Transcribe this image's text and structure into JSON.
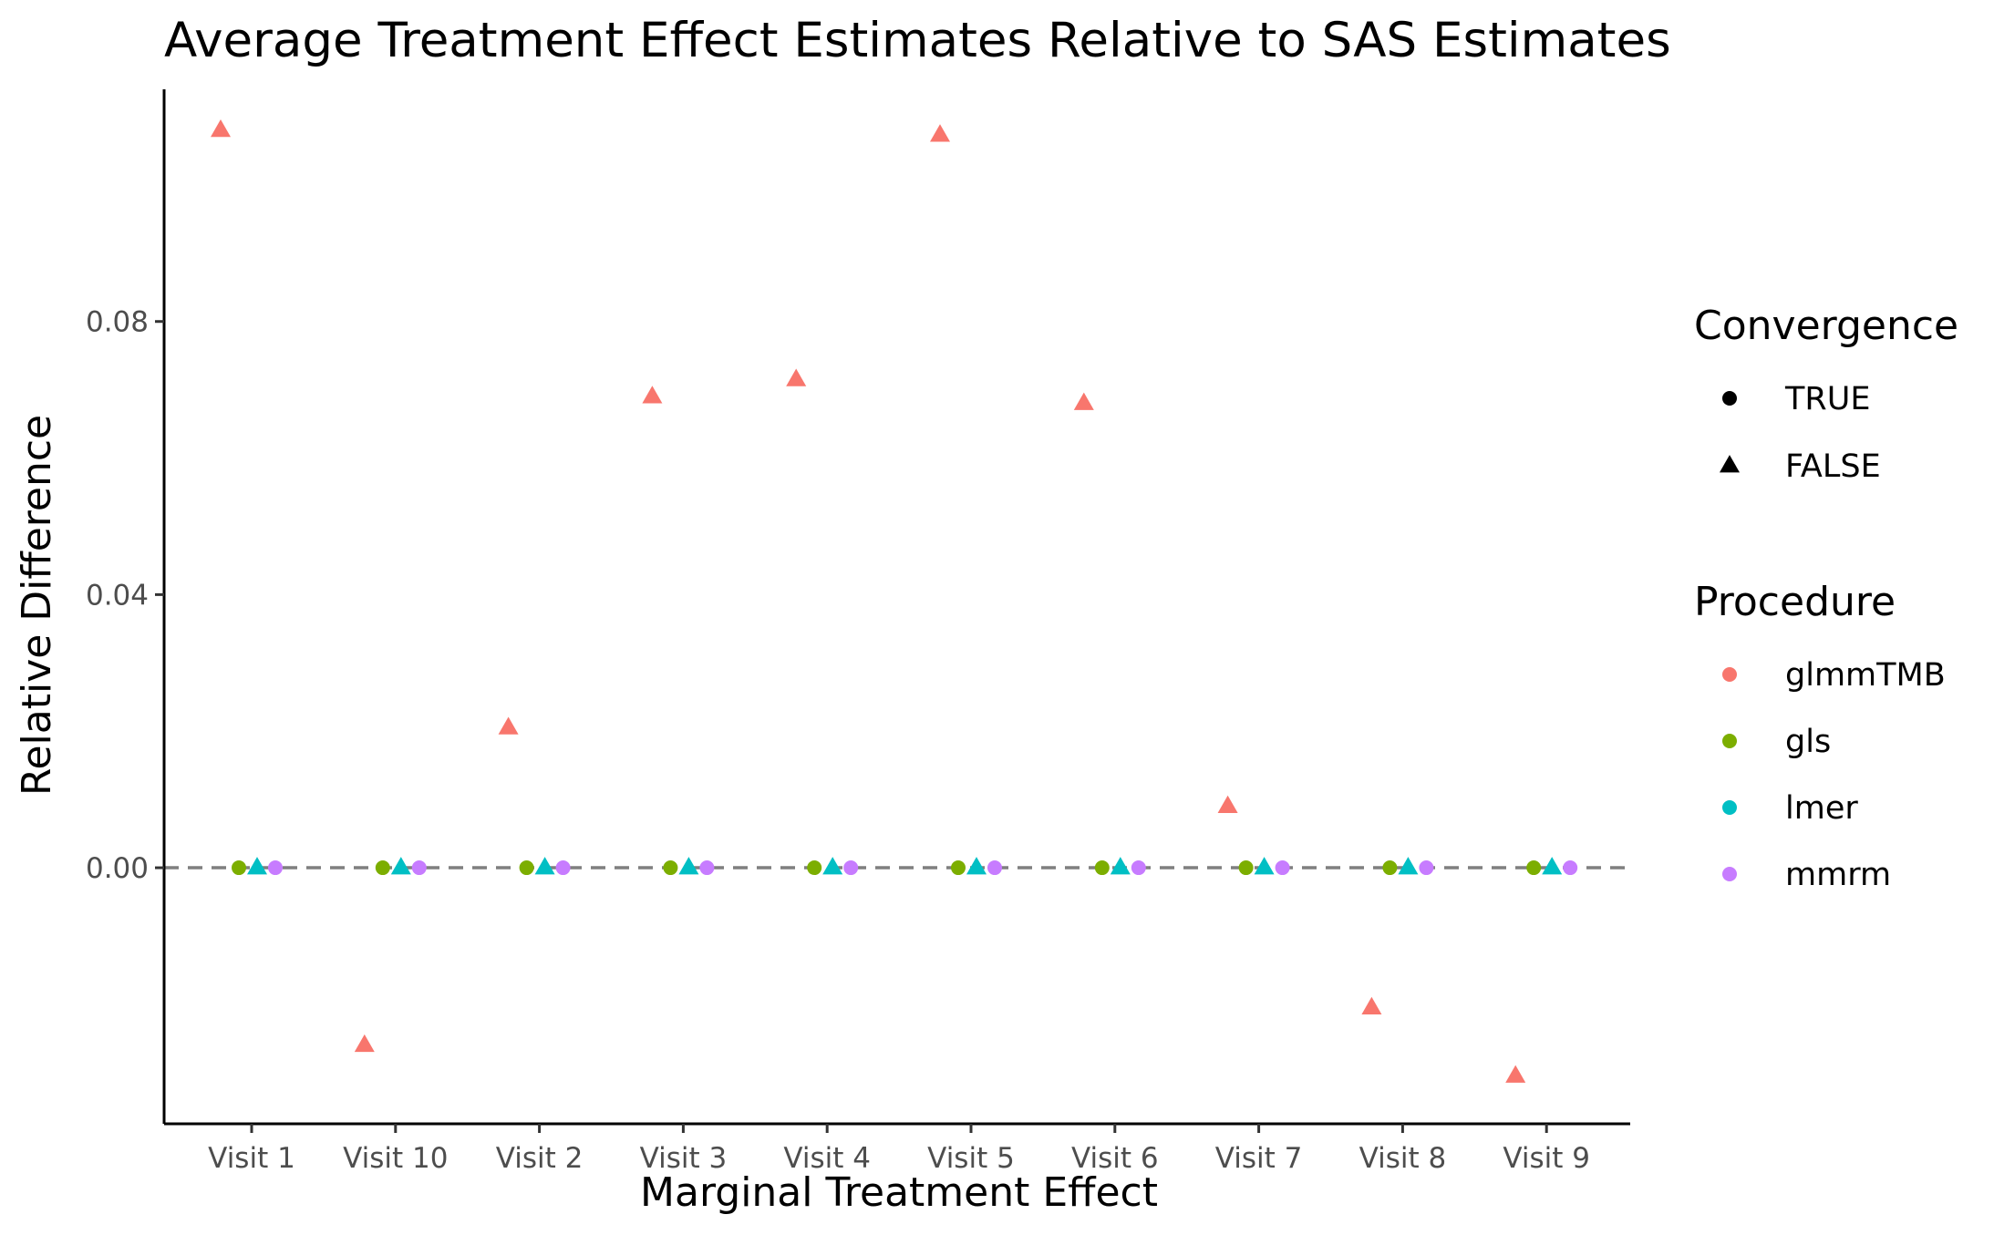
{
  "chart_data": {
    "type": "scatter",
    "title": "Average Treatment Effect Estimates Relative to SAS Estimates",
    "xlabel": "Marginal Treatment Effect",
    "ylabel": "Relative Difference",
    "categories": [
      "Visit 1",
      "Visit 10",
      "Visit 2",
      "Visit 3",
      "Visit 4",
      "Visit 5",
      "Visit 6",
      "Visit 7",
      "Visit 8",
      "Visit 9"
    ],
    "ylim": [
      -0.0375,
      0.114
    ],
    "yticks": [
      0,
      0.04,
      0.08
    ],
    "ytick_labels": [
      "0.00",
      "0.04",
      "0.08"
    ],
    "reference_line": 0,
    "grid": false,
    "legend_placement": "right",
    "series": [
      {
        "name": "glmmTMB",
        "color": "#F8766D",
        "convergence": "FALSE",
        "values": [
          0.108,
          -0.026,
          0.0205,
          0.069,
          0.0715,
          0.1073,
          0.068,
          0.009,
          -0.0205,
          -0.0305
        ]
      },
      {
        "name": "gls",
        "color": "#7CAE00",
        "convergence": "TRUE",
        "values": [
          0,
          0,
          0,
          0,
          0,
          0,
          0,
          0,
          0,
          0
        ]
      },
      {
        "name": "lmer",
        "color": "#00BFC4",
        "convergence": "FALSE",
        "values": [
          0,
          0,
          0,
          0,
          0,
          0,
          0,
          0,
          0,
          0
        ]
      },
      {
        "name": "mmrm",
        "color": "#C77CFF",
        "convergence": "TRUE",
        "values": [
          0,
          0,
          0,
          0,
          0,
          0,
          0,
          0,
          0,
          0
        ]
      }
    ],
    "legends": {
      "convergence": {
        "title": "Convergence",
        "items": [
          {
            "label": "TRUE",
            "shape": "circle"
          },
          {
            "label": "FALSE",
            "shape": "triangle"
          }
        ]
      },
      "procedure": {
        "title": "Procedure",
        "items": [
          {
            "label": "glmmTMB",
            "color": "#F8766D"
          },
          {
            "label": "gls",
            "color": "#7CAE00"
          },
          {
            "label": "lmer",
            "color": "#00BFC4"
          },
          {
            "label": "mmrm",
            "color": "#C77CFF"
          }
        ]
      }
    }
  }
}
